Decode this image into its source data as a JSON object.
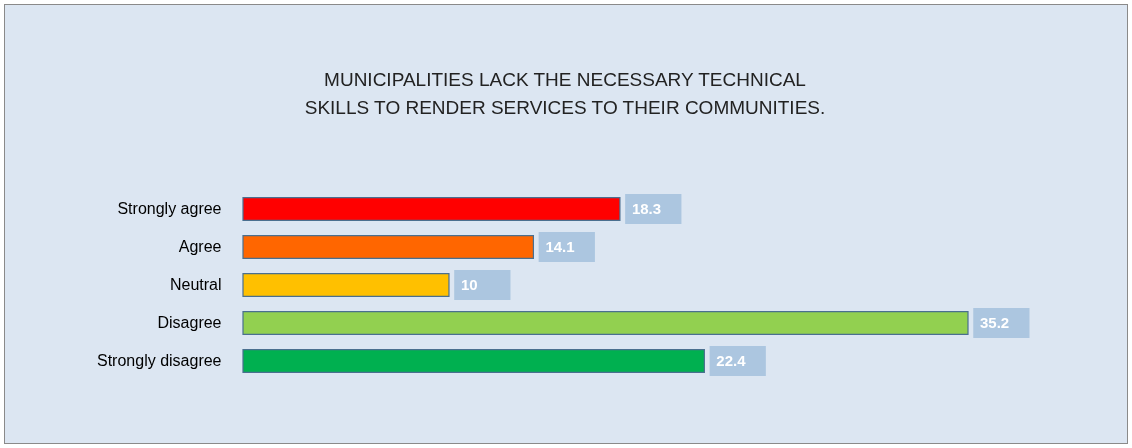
{
  "chart_data": {
    "type": "bar",
    "orientation": "horizontal",
    "title": "MUNICIPALITIES LACK THE NECESSARY TECHNICAL SKILLS TO RENDER SERVICES TO THEIR COMMUNITIES.",
    "categories": [
      "Strongly agree",
      "Agree",
      "Neutral",
      "Disagree",
      "Strongly disagree"
    ],
    "values": [
      18.3,
      14.1,
      10,
      35.2,
      22.4
    ],
    "colors": [
      "#ff0000",
      "#ff6600",
      "#ffc000",
      "#92d050",
      "#00b050"
    ],
    "data_labels": true,
    "legend": false,
    "grid": false
  }
}
